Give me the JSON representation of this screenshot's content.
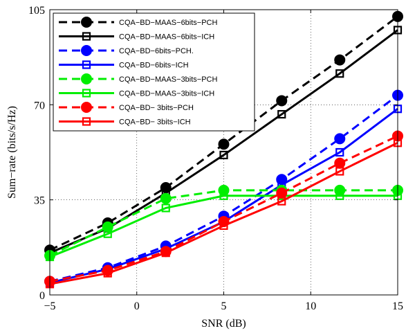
{
  "chart_data": {
    "type": "line",
    "xlabel": "SNR (dB)",
    "ylabel": "Sum−rate (bits/s/Hz)",
    "xlim": [
      -5,
      15
    ],
    "ylim": [
      0,
      105
    ],
    "xticks": [
      -5,
      0,
      5,
      10,
      15
    ],
    "xtick_labels": [
      "−5",
      "0",
      "5",
      "10",
      "15"
    ],
    "yticks": [
      0,
      35,
      70,
      105
    ],
    "ytick_labels": [
      "0",
      "35",
      "70",
      "105"
    ],
    "grid": "dotted",
    "legend_position": "top-left",
    "x": [
      -5,
      -1.67,
      1.67,
      5,
      8.33,
      11.67,
      15
    ],
    "series": [
      {
        "name": "CQA−BD−MAAS−6bits−PCH",
        "color": "#000000",
        "dash": "dashed",
        "marker": "circle",
        "values": [
          16.5,
          26.5,
          39.5,
          55.5,
          71.5,
          86.5,
          102.5
        ]
      },
      {
        "name": "CQA−BD−MAAS−6bits−ICH",
        "color": "#000000",
        "dash": "solid",
        "marker": "square",
        "values": [
          15.5,
          24.5,
          37.5,
          51.5,
          66.5,
          81.5,
          97.5
        ]
      },
      {
        "name": "CQA−BD−6bits−PCH.",
        "color": "#0000ff",
        "dash": "dashed",
        "marker": "circle",
        "values": [
          5,
          10,
          18,
          29,
          42.5,
          57.5,
          73.5
        ]
      },
      {
        "name": "CQA−BD−6bits−ICH",
        "color": "#0000ff",
        "dash": "solid",
        "marker": "square",
        "values": [
          4.5,
          9.5,
          17,
          27,
          40.5,
          52.5,
          68.5
        ]
      },
      {
        "name": "CQA−BD−MAAS−3bits−PCH",
        "color": "#00ee00",
        "dash": "dashed",
        "marker": "circle",
        "values": [
          14.5,
          25,
          35.5,
          38.5,
          38.5,
          38.5,
          38.5
        ]
      },
      {
        "name": "CQA−BD−MAAS−3bits−ICH",
        "color": "#00ee00",
        "dash": "solid",
        "marker": "square",
        "values": [
          14,
          22.5,
          32,
          36.5,
          36.5,
          36.5,
          36.5
        ]
      },
      {
        "name": "CQA−BD− 3bits−PCH",
        "color": "#ff0000",
        "dash": "dashed",
        "marker": "circle",
        "values": [
          5,
          9,
          16,
          27,
          37.5,
          48.5,
          58.5
        ]
      },
      {
        "name": "CQA−BD− 3bits−ICH",
        "color": "#ff0000",
        "dash": "solid",
        "marker": "square",
        "values": [
          4,
          8,
          15.5,
          25.5,
          34.5,
          45.5,
          56
        ]
      }
    ]
  }
}
